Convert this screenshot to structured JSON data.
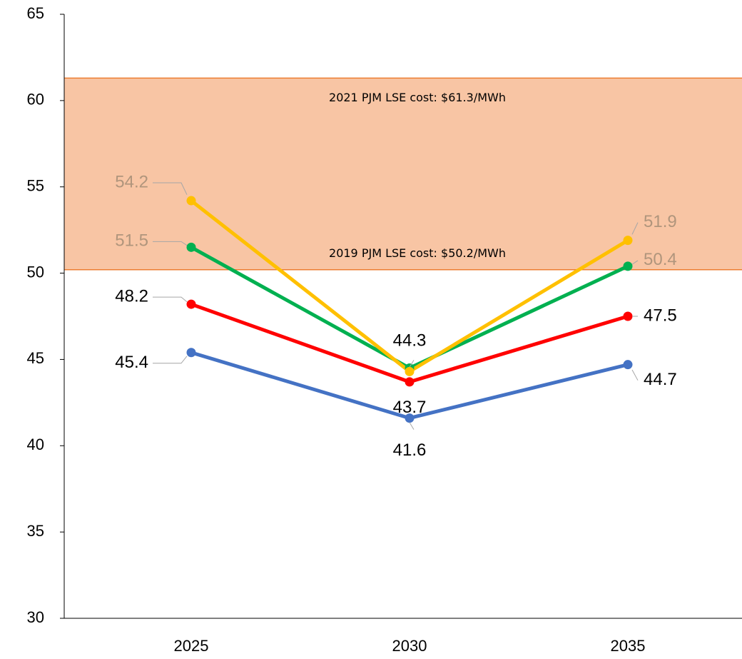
{
  "chart_data": {
    "type": "line",
    "categories": [
      "2025",
      "2030",
      "2035"
    ],
    "series": [
      {
        "color": "#4472c4",
        "values": [
          45.4,
          41.6,
          44.7
        ],
        "value_labels": [
          "45.4",
          "41.6",
          "44.7"
        ]
      },
      {
        "color": "#ff0000",
        "values": [
          48.2,
          43.7,
          47.5
        ],
        "value_labels": [
          "48.2",
          "43.7",
          "47.5"
        ]
      },
      {
        "color": "#00b050",
        "values": [
          51.5,
          44.5,
          50.4
        ],
        "value_labels": [
          "51.5",
          null,
          "50.4"
        ]
      },
      {
        "color": "#ffc000",
        "values": [
          54.2,
          44.3,
          51.9
        ],
        "value_labels": [
          "54.2",
          "44.3",
          "51.9"
        ]
      }
    ],
    "reference_band": {
      "color": "#f8c5a4",
      "edge_color": "#ed7d31",
      "lines": [
        {
          "value": 61.3,
          "label": "2021 PJM LSE cost: $61.3/MWh"
        },
        {
          "value": 50.2,
          "label": "2019 PJM LSE cost: $50.2/MWh"
        }
      ]
    },
    "ylim": [
      30,
      65
    ],
    "yticks": [
      30,
      35,
      40,
      45,
      50,
      55,
      60,
      65
    ],
    "grid": false
  }
}
